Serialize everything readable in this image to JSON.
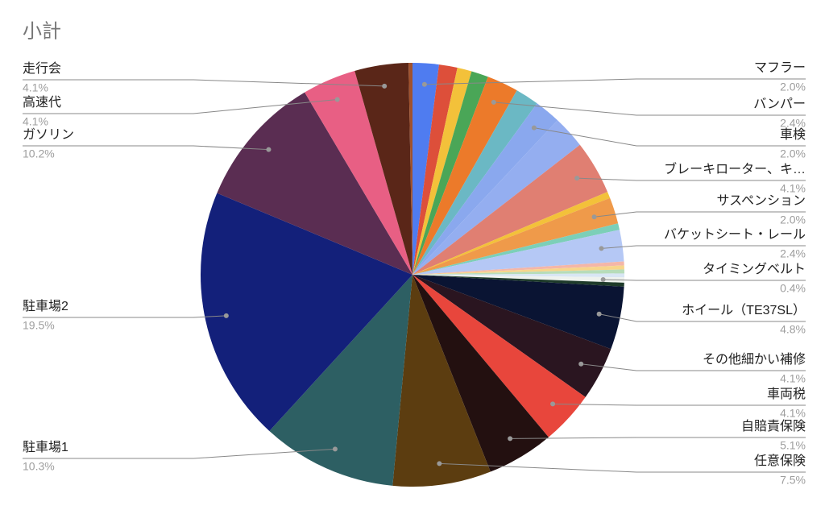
{
  "chart_data": {
    "type": "pie",
    "title": "小計",
    "categories": [
      "マフラー",
      null,
      null,
      null,
      "バンパー",
      null,
      "車検",
      null,
      "ブレーキローター、キ…",
      null,
      "サスペンション",
      null,
      "バケットシート・レール",
      null,
      null,
      null,
      null,
      "タイミングベルト",
      null,
      "ホイール（TE37SL）",
      "その他細かい補修",
      "車両税",
      "自賠責保険",
      "任意保険",
      "駐車場1",
      "駐車場2",
      "ガソリン",
      "高速代",
      "走行会",
      null
    ],
    "values": [
      2.0,
      1.4,
      1.1,
      1.3,
      2.4,
      1.8,
      2.0,
      2.5,
      4.1,
      0.5,
      2.0,
      0.5,
      2.4,
      0.3,
      0.3,
      0.3,
      0.3,
      0.4,
      0.3,
      4.8,
      4.1,
      4.1,
      5.1,
      7.5,
      10.3,
      19.5,
      10.2,
      4.1,
      4.1,
      0.3
    ],
    "value_labels": [
      "2.0%",
      null,
      null,
      null,
      "2.4%",
      null,
      "2.0%",
      null,
      "4.1%",
      null,
      "2.0%",
      null,
      "2.4%",
      null,
      null,
      null,
      null,
      "0.4%",
      null,
      "4.8%",
      "4.1%",
      "4.1%",
      "5.1%",
      "7.5%",
      "10.3%",
      "19.5%",
      "10.2%",
      "4.1%",
      "4.1%",
      null
    ],
    "colors": [
      "#4f7cf0",
      "#dd4f3a",
      "#f3c13a",
      "#4aa657",
      "#ec7a2a",
      "#6bb8c4",
      "#8aa8ee",
      "#94aef0",
      "#e07f72",
      "#f3c13a",
      "#ef9a4a",
      "#7ccfb8",
      "#b5c8f5",
      "#f4b6a8",
      "#f7d58b",
      "#b7dcb9",
      "#d8e6f4",
      "#eef2ee",
      "#1e3b2a",
      "#0a1433",
      "#2a1520",
      "#e8463c",
      "#231010",
      "#5c3d10",
      "#2d5f63",
      "#13207a",
      "#5a2d52",
      "#e85f84",
      "#5a2618",
      "#a0522d"
    ]
  }
}
